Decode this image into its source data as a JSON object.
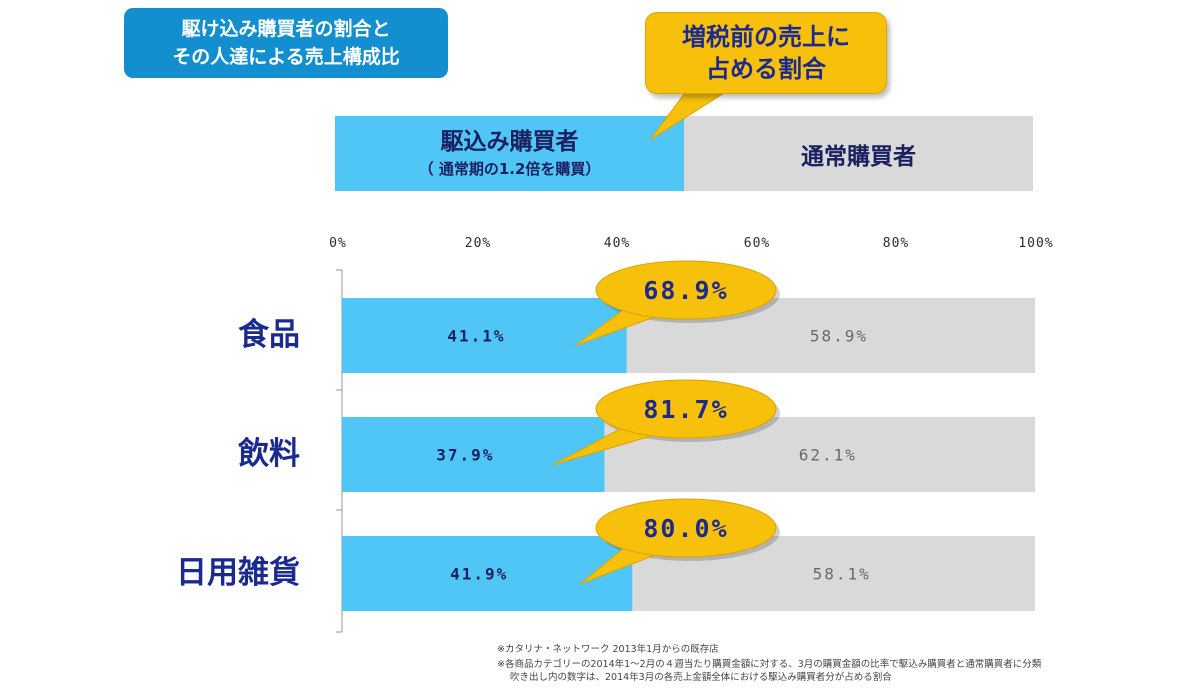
{
  "header": {
    "title_line1": "駆け込み購買者の割合と",
    "title_line2": "その人達による売上構成比",
    "callout_line1": "増税前の売上に",
    "callout_line2": "占める割合"
  },
  "legend": {
    "left_main": "駆込み購買者",
    "left_sub": "（ 通常期の1.2倍を購買）",
    "right": "通常購買者"
  },
  "colors": {
    "rush_buyers": "#4fc6f5",
    "normal_buyers": "#d9d9d9",
    "callout": "#f7c00b",
    "label_text": "#1b2a8f",
    "title_box": "#138fcf"
  },
  "chart_data": {
    "type": "bar",
    "orientation": "horizontal",
    "stacked": true,
    "categories": [
      "食品",
      "飲料",
      "日用雑貨"
    ],
    "series": [
      {
        "name": "駆込み購買者",
        "values": [
          41.1,
          37.9,
          41.9
        ]
      },
      {
        "name": "通常購買者",
        "values": [
          58.9,
          62.1,
          58.1
        ]
      }
    ],
    "value_labels": [
      [
        "41.1%",
        "37.9%",
        "41.9%"
      ],
      [
        "58.9%",
        "62.1%",
        "58.1%"
      ]
    ],
    "callouts": [
      {
        "category": "食品",
        "value": 68.9,
        "label": "68.9%"
      },
      {
        "category": "飲料",
        "value": 81.7,
        "label": "81.7%"
      },
      {
        "category": "日用雑貨",
        "value": 80.0,
        "label": "80.0%"
      }
    ],
    "xticks": [
      "0%",
      "20%",
      "40%",
      "60%",
      "80%",
      "100%"
    ],
    "xlim": [
      0,
      100
    ]
  },
  "footnotes": [
    "※カタリナ・ネットワーク 2013年1月からの既存店",
    "※各商品カテゴリーの2014年1～2月の４週当たり購買金額に対する、3月の購買金額の比率で駆込み購買者と通常購買者に分類",
    "吹き出し内の数字は、2014年3月の各売上金額全体における駆込み購買者分が占める割合"
  ]
}
